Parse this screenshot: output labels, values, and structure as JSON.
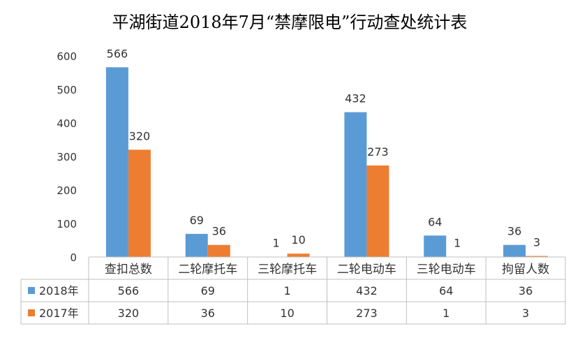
{
  "chart_data": {
    "type": "bar",
    "title": "平湖街道2018年7月“禁摩限电”行动查处统计表",
    "categories": [
      "查扣总数",
      "二轮摩托车",
      "三轮摩托车",
      "二轮电动车",
      "三轮电动车",
      "拘留人数"
    ],
    "series": [
      {
        "name": "2018年",
        "values": [
          566,
          69,
          1,
          432,
          64,
          36
        ],
        "color": "#5b9bd5"
      },
      {
        "name": "2017年",
        "values": [
          320,
          36,
          10,
          273,
          1,
          3
        ],
        "color": "#ed7d31"
      }
    ],
    "ylim": [
      0,
      600
    ],
    "yticks": [
      "0",
      "100",
      "200",
      "300",
      "400",
      "500",
      "600"
    ],
    "data_labels": true,
    "data_table": true,
    "grid": false
  }
}
